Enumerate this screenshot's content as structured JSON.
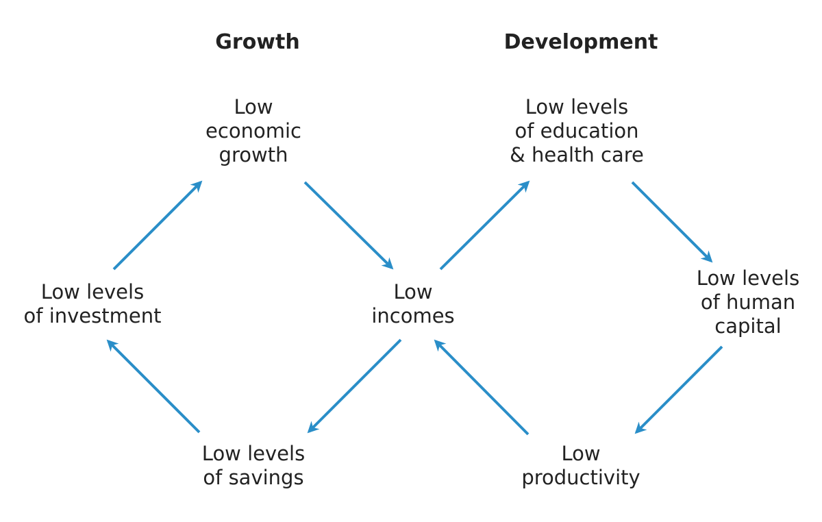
{
  "headings": {
    "growth": "Growth",
    "development": "Development"
  },
  "nodes": {
    "low_economic_growth": [
      "Low",
      "economic",
      "growth"
    ],
    "low_education_health": [
      "Low levels",
      "of education",
      "& health care"
    ],
    "low_investment": [
      "Low levels",
      "of investment"
    ],
    "low_incomes": [
      "Low",
      "incomes"
    ],
    "low_human_capital": [
      "Low levels",
      "of human",
      "capital"
    ],
    "low_savings": [
      "Low levels",
      "of savings"
    ],
    "low_productivity": [
      "Low",
      "productivity"
    ]
  },
  "colors": {
    "arrow": "#2a8ec8",
    "text": "#222222"
  }
}
